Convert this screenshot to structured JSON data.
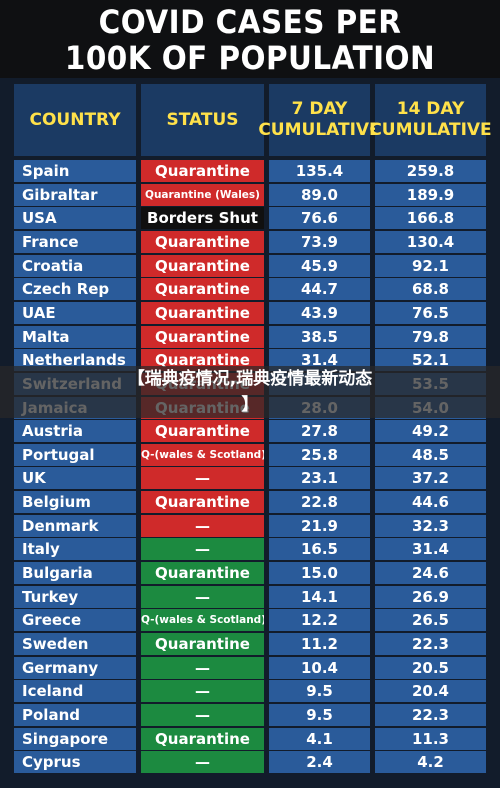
{
  "title_line1": "COVID CASES PER",
  "title_line2": "100K OF POPULATION",
  "headers": {
    "country": "COUNTRY",
    "status": "STATUS",
    "c7_line1": "7 DAY",
    "c7_line2": "CUMULATIVE",
    "c14_line1": "14 DAY",
    "c14_line2": "CUMULATIVE"
  },
  "overlay": {
    "line1": "【瑞典疫情况,瑞典疫情最新动态",
    "line2": "】"
  },
  "colors": {
    "red": "#cf2a2a",
    "black": "#101010",
    "green": "#1c8a40",
    "header_text": "#ffe14a",
    "cell_blue": "#2a5b9a"
  },
  "chart_data": {
    "type": "table",
    "title": "COVID CASES PER 100K OF POPULATION",
    "columns": [
      "COUNTRY",
      "STATUS",
      "7 DAY CUMULATIVE",
      "14 DAY CUMULATIVE"
    ],
    "rows": [
      {
        "country": "Spain",
        "status": "Quarantine",
        "status_color": "red",
        "d7": "135.4",
        "d14": "259.8"
      },
      {
        "country": "Gibraltar",
        "status": "Quarantine (Wales)",
        "status_color": "red",
        "d7": "89.0",
        "d14": "189.9"
      },
      {
        "country": "USA",
        "status": "Borders Shut",
        "status_color": "black",
        "d7": "76.6",
        "d14": "166.8"
      },
      {
        "country": "France",
        "status": "Quarantine",
        "status_color": "red",
        "d7": "73.9",
        "d14": "130.4"
      },
      {
        "country": "Croatia",
        "status": "Quarantine",
        "status_color": "red",
        "d7": "45.9",
        "d14": "92.1"
      },
      {
        "country": "Czech Rep",
        "status": "Quarantine",
        "status_color": "red",
        "d7": "44.7",
        "d14": "68.8"
      },
      {
        "country": "UAE",
        "status": "Quarantine",
        "status_color": "red",
        "d7": "43.9",
        "d14": "76.5"
      },
      {
        "country": "Malta",
        "status": "Quarantine",
        "status_color": "red",
        "d7": "38.5",
        "d14": "79.8"
      },
      {
        "country": "Netherlands",
        "status": "Quarantine",
        "status_color": "red",
        "d7": "31.4",
        "d14": "52.1"
      },
      {
        "country": "Switzerland",
        "status": "Quarantine",
        "status_color": "red",
        "d7": "",
        "d14": "53.5"
      },
      {
        "country": "Jamaica",
        "status": "Quarantine",
        "status_color": "red",
        "d7": "28.0",
        "d14": "54.0"
      },
      {
        "country": "Austria",
        "status": "Quarantine",
        "status_color": "red",
        "d7": "27.8",
        "d14": "49.2"
      },
      {
        "country": "Portugal",
        "status": "Q-(wales & Scotland)",
        "status_color": "red",
        "d7": "25.8",
        "d14": "48.5"
      },
      {
        "country": "UK",
        "status": "—",
        "status_color": "red",
        "d7": "23.1",
        "d14": "37.2"
      },
      {
        "country": "Belgium",
        "status": "Quarantine",
        "status_color": "red",
        "d7": "22.8",
        "d14": "44.6"
      },
      {
        "country": "Denmark",
        "status": "—",
        "status_color": "red",
        "d7": "21.9",
        "d14": "32.3"
      },
      {
        "country": "Italy",
        "status": "—",
        "status_color": "green",
        "d7": "16.5",
        "d14": "31.4"
      },
      {
        "country": "Bulgaria",
        "status": "Quarantine",
        "status_color": "green",
        "d7": "15.0",
        "d14": "24.6"
      },
      {
        "country": "Turkey",
        "status": "—",
        "status_color": "green",
        "d7": "14.1",
        "d14": "26.9"
      },
      {
        "country": "Greece",
        "status": "Q-(wales & Scotland)",
        "status_color": "green",
        "d7": "12.2",
        "d14": "26.5"
      },
      {
        "country": "Sweden",
        "status": "Quarantine",
        "status_color": "green",
        "d7": "11.2",
        "d14": "22.3"
      },
      {
        "country": "Germany",
        "status": "—",
        "status_color": "green",
        "d7": "10.4",
        "d14": "20.5"
      },
      {
        "country": "Iceland",
        "status": "—",
        "status_color": "green",
        "d7": "9.5",
        "d14": "20.4"
      },
      {
        "country": "Poland",
        "status": "—",
        "status_color": "green",
        "d7": "9.5",
        "d14": "22.3"
      },
      {
        "country": "Singapore",
        "status": "Quarantine",
        "status_color": "green",
        "d7": "4.1",
        "d14": "11.3"
      },
      {
        "country": "Cyprus",
        "status": "—",
        "status_color": "green",
        "d7": "2.4",
        "d14": "4.2"
      }
    ]
  }
}
